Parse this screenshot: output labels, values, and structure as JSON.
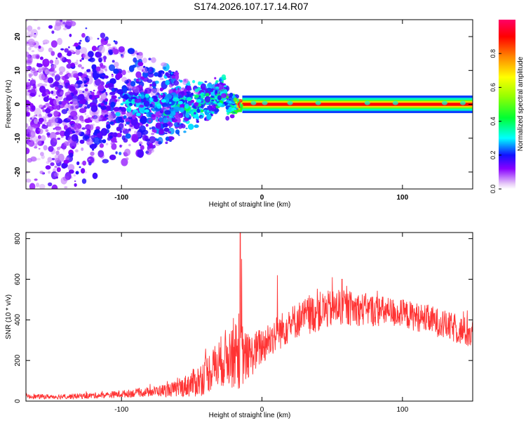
{
  "title": "S174.2026.107.17.14.R07",
  "chart_data": [
    {
      "type": "heatmap",
      "xlabel": "Height of straight line (km)",
      "ylabel": "Frequency (Hz)",
      "xlim": [
        -168,
        150
      ],
      "ylim": [
        -25,
        25
      ],
      "xticks": [
        -100,
        0,
        100
      ],
      "yticks": [
        -20,
        -10,
        0,
        10,
        20
      ],
      "colorbar": {
        "label": "Normalized spectral amplitude",
        "range": [
          0,
          1
        ],
        "ticks": [
          0.0,
          0.2,
          0.4,
          0.6,
          0.8
        ]
      },
      "description_points": [
        {
          "x": -165,
          "spread": 25,
          "intensity": 0.12
        },
        {
          "x": -120,
          "spread": 18,
          "intensity": 0.18
        },
        {
          "x": -80,
          "spread": 12,
          "intensity": 0.22
        },
        {
          "x": -50,
          "spread": 6,
          "intensity": 0.28
        },
        {
          "x": -20,
          "spread": 3,
          "intensity": 0.35
        },
        {
          "x": -15,
          "spread": 0.8,
          "intensity": 0.9
        },
        {
          "x": 150,
          "spread": 0.8,
          "intensity": 0.9
        }
      ],
      "ridge_frequency_hz": 0
    },
    {
      "type": "line",
      "xlabel": "Height of straight line (km)",
      "ylabel": "SNR (10 * v/v)",
      "xlim": [
        -168,
        150
      ],
      "ylim": [
        0,
        830
      ],
      "xticks": [
        -100,
        0,
        100
      ],
      "yticks": [
        0,
        200,
        400,
        600,
        800
      ],
      "color": "#ff3333",
      "envelope": [
        {
          "x": -168,
          "mean": 22,
          "spread": 12
        },
        {
          "x": -140,
          "mean": 22,
          "spread": 14
        },
        {
          "x": -110,
          "mean": 30,
          "spread": 18
        },
        {
          "x": -80,
          "mean": 45,
          "spread": 25
        },
        {
          "x": -60,
          "mean": 60,
          "spread": 45
        },
        {
          "x": -45,
          "mean": 100,
          "spread": 90
        },
        {
          "x": -35,
          "mean": 160,
          "spread": 120
        },
        {
          "x": -25,
          "mean": 220,
          "spread": 160
        },
        {
          "x": -17,
          "mean": 250,
          "spread": 220
        },
        {
          "x": -10,
          "mean": 210,
          "spread": 120
        },
        {
          "x": -2,
          "mean": 260,
          "spread": 110
        },
        {
          "x": 10,
          "mean": 330,
          "spread": 100
        },
        {
          "x": 25,
          "mean": 400,
          "spread": 100
        },
        {
          "x": 40,
          "mean": 440,
          "spread": 110
        },
        {
          "x": 55,
          "mean": 460,
          "spread": 100
        },
        {
          "x": 75,
          "mean": 450,
          "spread": 90
        },
        {
          "x": 100,
          "mean": 430,
          "spread": 80
        },
        {
          "x": 120,
          "mean": 400,
          "spread": 80
        },
        {
          "x": 140,
          "mean": 350,
          "spread": 80
        },
        {
          "x": 150,
          "mean": 330,
          "spread": 90
        }
      ],
      "spikes": [
        {
          "x": -15.5,
          "y": 830
        },
        {
          "x": -14.5,
          "y": 700
        },
        {
          "x": 11,
          "y": 620
        },
        {
          "x": 50,
          "y": 610
        },
        {
          "x": 57,
          "y": 600
        }
      ]
    }
  ]
}
